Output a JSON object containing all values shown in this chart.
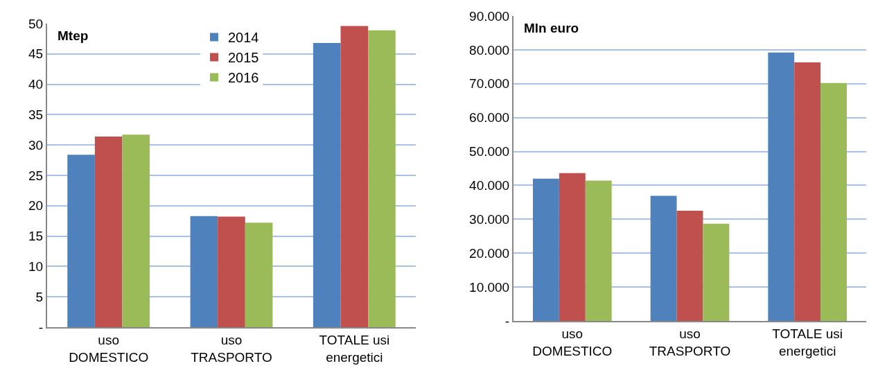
{
  "chart_data": [
    {
      "type": "bar",
      "categories": [
        "uso DOMESTICO",
        "uso TRASPORTO",
        "TOTALE usi energetici"
      ],
      "series": [
        {
          "name": "2014",
          "color": "#4f81bd",
          "values": [
            28.4,
            18.3,
            46.8
          ]
        },
        {
          "name": "2015",
          "color": "#c0504d",
          "values": [
            31.4,
            18.2,
            49.6
          ]
        },
        {
          "name": "2016",
          "color": "#9bbb59",
          "values": [
            31.7,
            17.2,
            48.9
          ]
        }
      ],
      "annotations": [
        "Mtep"
      ],
      "ylim": [
        0,
        50
      ],
      "yticks": [
        {
          "value": 0,
          "label": "-"
        },
        5,
        10,
        15,
        20,
        25,
        30,
        35,
        40,
        45,
        50
      ],
      "grid": "y",
      "legend": "top"
    },
    {
      "type": "bar",
      "categories": [
        "uso DOMESTICO",
        "uso TRASPORTO",
        "TOTALE usi energetici"
      ],
      "series": [
        {
          "color": "#4f81bd",
          "values": [
            42000,
            36900,
            79200
          ]
        },
        {
          "color": "#c0504d",
          "values": [
            43600,
            32500,
            76300
          ]
        },
        {
          "color": "#9bbb59",
          "values": [
            41400,
            28700,
            70200
          ]
        }
      ],
      "annotations": [
        "Mln euro"
      ],
      "ylim": [
        0,
        90000
      ],
      "yticks": [
        {
          "value": 0,
          "label": "-"
        },
        {
          "value": 10000,
          "label": "10.000"
        },
        {
          "value": 20000,
          "label": "20.000"
        },
        {
          "value": 30000,
          "label": "30.000"
        },
        {
          "value": 40000,
          "label": "40.000"
        },
        {
          "value": 50000,
          "label": "50.000"
        },
        {
          "value": 60000,
          "label": "60.000"
        },
        {
          "value": 70000,
          "label": "70.000"
        },
        {
          "value": 80000,
          "label": "80.000"
        },
        {
          "value": 90000,
          "label": "90.000"
        }
      ],
      "grid": "y",
      "legend": false
    }
  ]
}
